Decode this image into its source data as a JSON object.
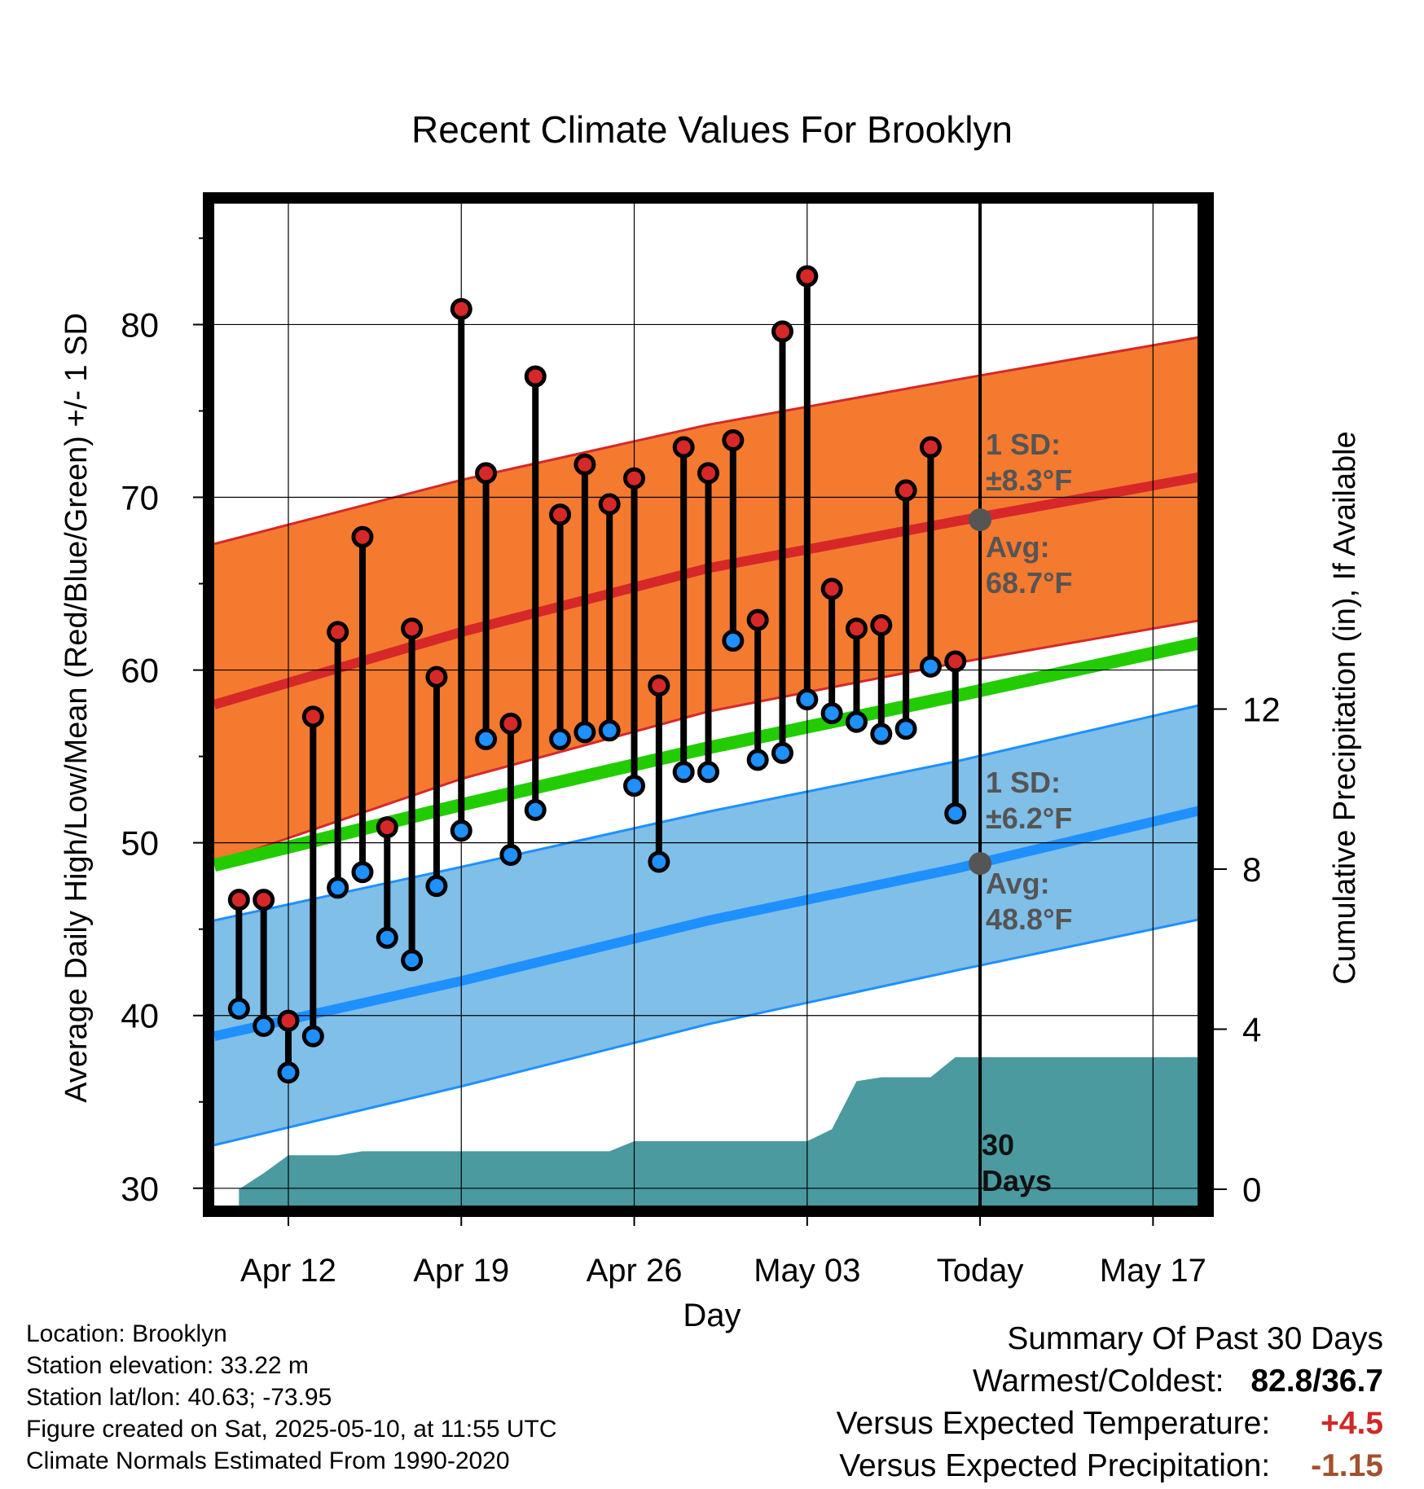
{
  "title": "Recent Climate Values For Brooklyn",
  "chart_data": {
    "type": "line",
    "title": "Recent Climate Values For Brooklyn",
    "xlabel": "Day",
    "ylabel": "Average Daily High/Low/Mean (Red/Blue/Green) +/- 1 SD",
    "y2label": "Cumulative Precipitation (in), If Available",
    "x_ticks": [
      "Apr 12",
      "Apr 19",
      "Apr 26",
      "May 03",
      "Today",
      "May 17"
    ],
    "ylim": [
      29,
      87
    ],
    "y_ticks": [
      30,
      40,
      50,
      60,
      70,
      80
    ],
    "y2_ticks": [
      0,
      4,
      8,
      12
    ],
    "grid": true,
    "x_start": "Apr 09",
    "x_end": "May 19",
    "today": "May 10",
    "dates": [
      "Apr 10",
      "Apr 11",
      "Apr 12",
      "Apr 13",
      "Apr 14",
      "Apr 15",
      "Apr 16",
      "Apr 17",
      "Apr 18",
      "Apr 19",
      "Apr 20",
      "Apr 21",
      "Apr 22",
      "Apr 23",
      "Apr 24",
      "Apr 25",
      "Apr 26",
      "Apr 27",
      "Apr 28",
      "Apr 29",
      "Apr 30",
      "May 01",
      "May 02",
      "May 03",
      "May 04",
      "May 05",
      "May 06",
      "May 07",
      "May 08",
      "May 09"
    ],
    "highs": [
      46.7,
      46.7,
      39.7,
      57.3,
      62.2,
      67.7,
      50.9,
      62.4,
      59.6,
      80.9,
      71.4,
      56.9,
      77.0,
      69.0,
      71.9,
      69.6,
      71.1,
      59.1,
      72.9,
      71.4,
      73.3,
      62.9,
      79.6,
      82.8,
      64.7,
      62.4,
      62.6,
      70.4,
      72.9,
      60.5
    ],
    "lows": [
      40.4,
      39.4,
      36.7,
      38.8,
      47.4,
      48.3,
      44.5,
      43.2,
      47.5,
      50.7,
      56.0,
      49.3,
      51.9,
      56.0,
      56.4,
      56.5,
      53.3,
      48.9,
      54.1,
      54.1,
      61.7,
      54.8,
      55.2,
      58.3,
      57.5,
      57.0,
      56.3,
      56.6,
      60.2,
      51.7
    ],
    "normal_high": {
      "x": [
        "Apr 09",
        "Apr 19",
        "Apr 29",
        "May 09",
        "May 19"
      ],
      "avg": [
        58.0,
        62.2,
        65.9,
        68.6,
        71.2
      ],
      "sd_upper": [
        67.3,
        71.0,
        74.2,
        76.8,
        79.3
      ],
      "sd_lower": [
        48.8,
        53.7,
        57.6,
        60.4,
        62.9
      ]
    },
    "normal_low": {
      "x": [
        "Apr 09",
        "Apr 19",
        "Apr 29",
        "May 09",
        "May 19"
      ],
      "avg": [
        38.8,
        42.0,
        45.5,
        48.5,
        51.9
      ],
      "sd_upper": [
        45.5,
        48.6,
        51.8,
        54.7,
        58.0
      ],
      "sd_lower": [
        32.5,
        35.9,
        39.5,
        42.6,
        45.6
      ]
    },
    "normal_mean": {
      "x": [
        "Apr 09",
        "Apr 19",
        "Apr 29",
        "May 09",
        "May 19"
      ],
      "values": [
        48.7,
        52.2,
        55.5,
        58.5,
        61.6
      ]
    },
    "precip": {
      "x": [
        "Apr 10",
        "Apr 11",
        "Apr 12",
        "Apr 14",
        "Apr 15",
        "Apr 25",
        "Apr 26",
        "Apr 27",
        "May 03",
        "May 04",
        "May 05",
        "May 06",
        "May 08",
        "May 09",
        "May 19"
      ],
      "values": [
        0,
        0.4,
        0.85,
        0.85,
        0.95,
        0.95,
        1.2,
        1.2,
        1.2,
        1.5,
        2.7,
        2.8,
        2.8,
        3.3,
        3.3
      ]
    },
    "annotations": {
      "high_sd_label": "1 SD:",
      "high_sd_value": "±8.3°F",
      "high_avg_label": "Avg:",
      "high_avg_value": "68.7°F",
      "low_sd_label": "1 SD:",
      "low_sd_value": "±6.2°F",
      "low_avg_label": "Avg:",
      "low_avg_value": "48.8°F",
      "days_label": "30",
      "days_label2": "Days"
    },
    "colors": {
      "high_band": "#f47a30",
      "high_line": "#d62828",
      "low_band": "#7fbfe8",
      "low_line": "#1e90ff",
      "mean_line": "#22cc00",
      "precip": "#4a9aa0",
      "high_marker": "#d62828",
      "low_marker": "#1e90ff",
      "today_marker": "#555555",
      "annotation_text": "#555555"
    }
  },
  "footer": {
    "location": "Location: Brooklyn",
    "elevation": "Station elevation: 33.22 m",
    "latlon": "Station lat/lon: 40.63; -73.95",
    "created": "Figure created on Sat, 2025-05-10, at 11:55 UTC",
    "normals": "Climate Normals Estimated From 1990-2020"
  },
  "summary": {
    "heading": "Summary Of Past 30 Days",
    "warmest_label": "Warmest/Coldest:",
    "warmest_value": "82.8/36.7",
    "temp_label": "Versus Expected Temperature:",
    "temp_value": "+4.5",
    "precip_label": "Versus Expected Precipitation:",
    "precip_value": "-1.15"
  }
}
